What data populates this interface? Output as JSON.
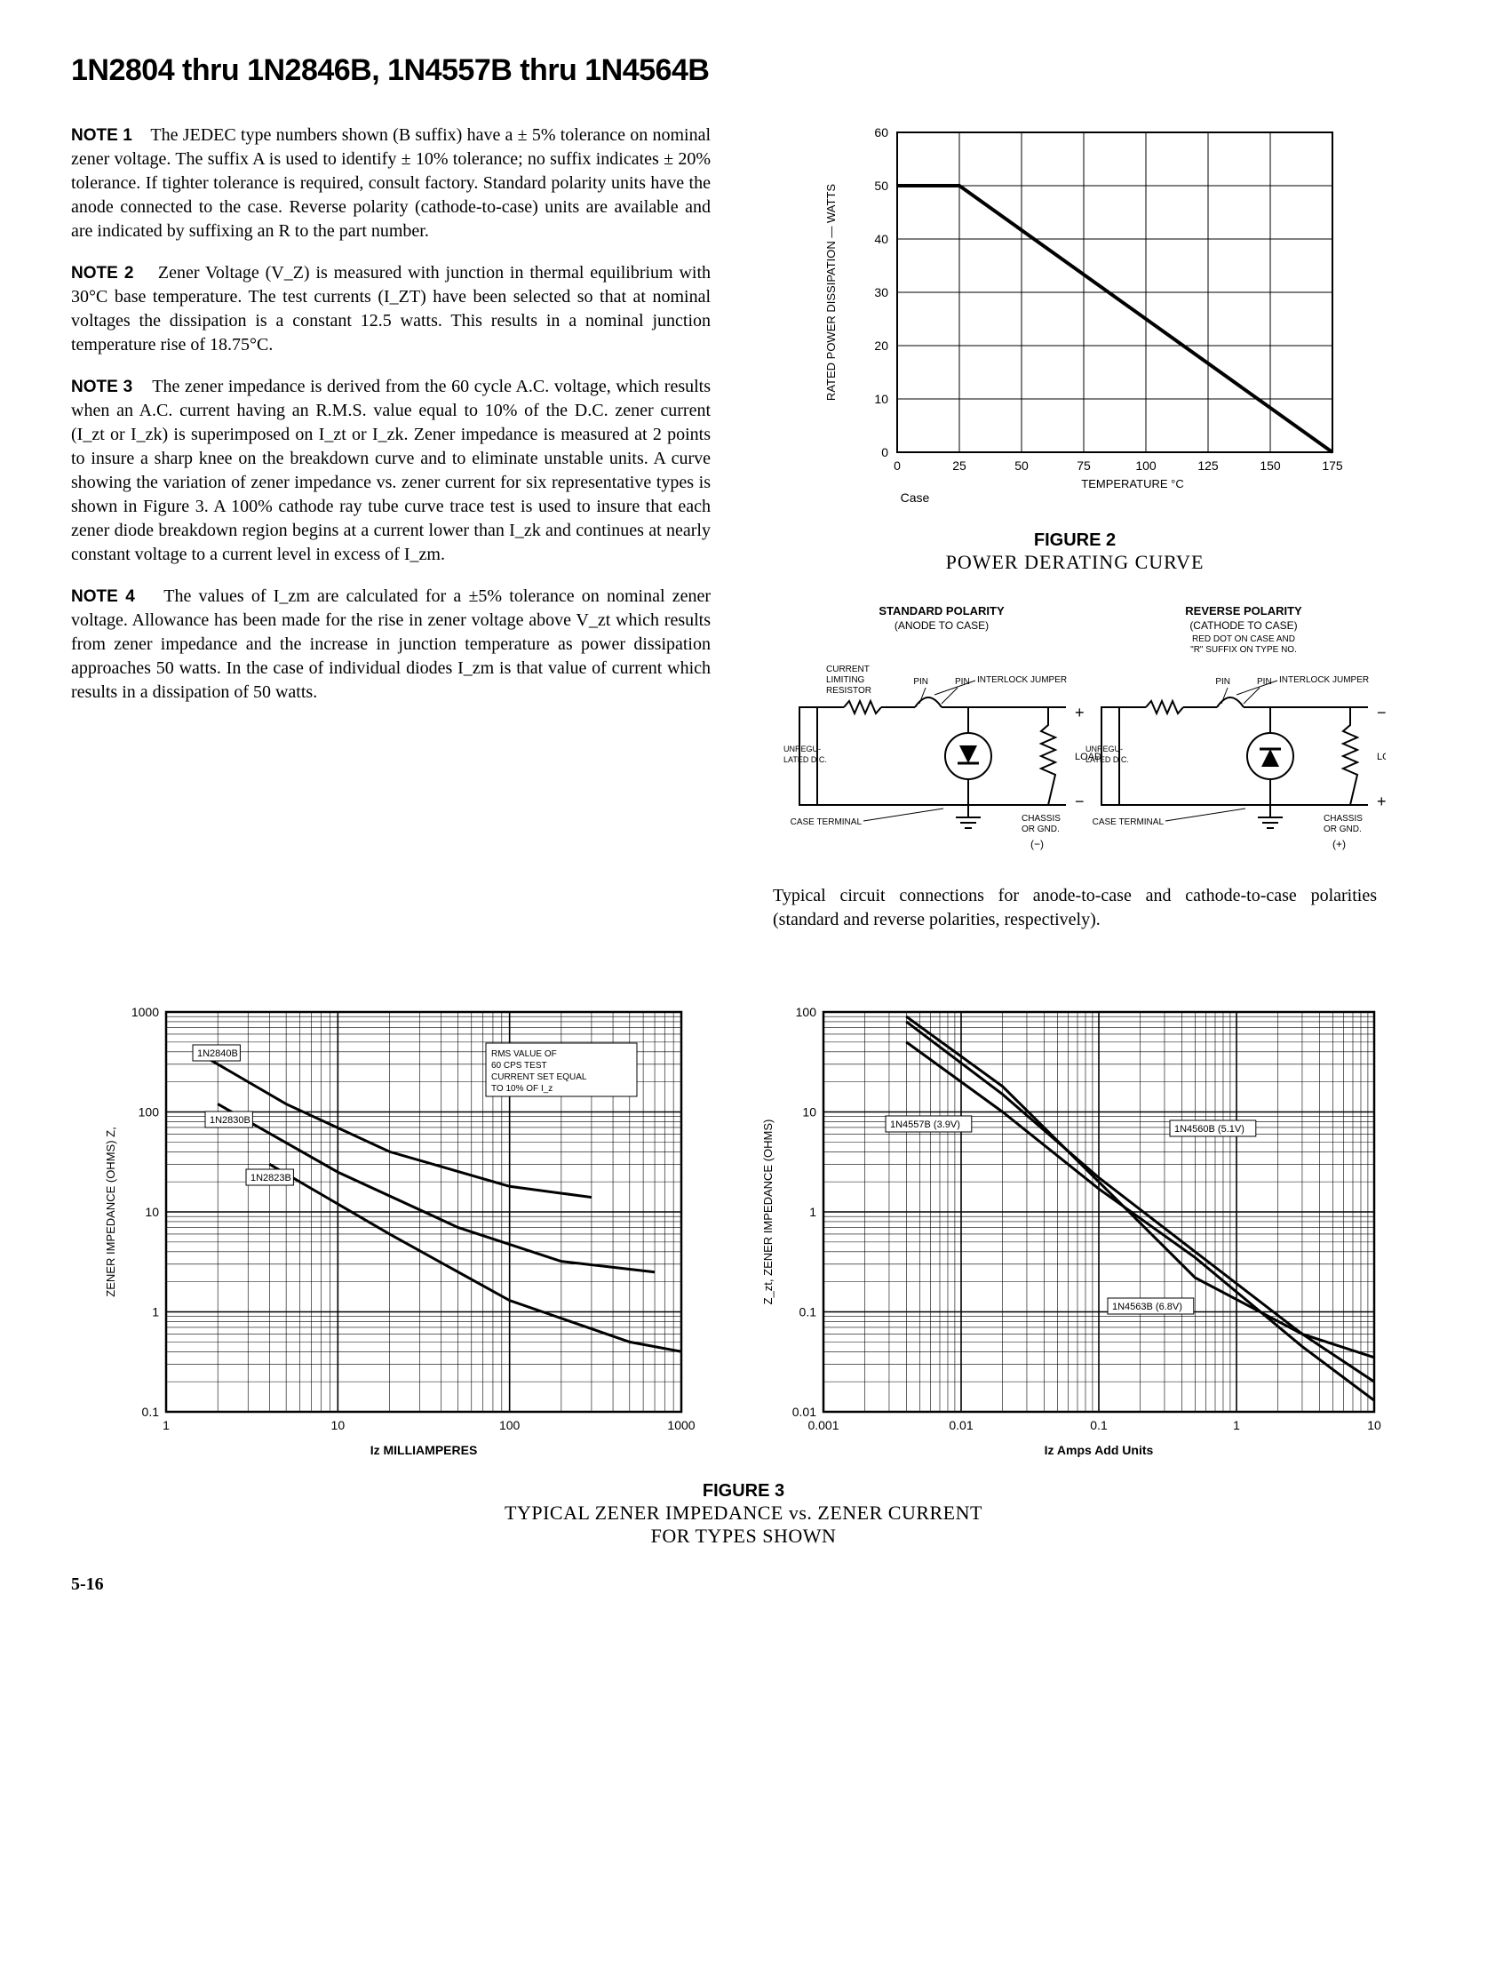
{
  "title": "1N2804 thru 1N2846B, 1N4557B thru 1N4564B",
  "notes": {
    "n1": {
      "label": "NOTE 1",
      "text": "The JEDEC type numbers shown (B suffix) have a ± 5% tolerance on nominal zener voltage. The suffix A is used to identify ± 10% tolerance; no suffix indicates ± 20% tolerance. If tighter tolerance is required, consult factory. Standard polarity units have the anode connected to the case. Reverse polarity (cathode-to-case) units are available and are indicated by suffixing an R to the part number."
    },
    "n2": {
      "label": "NOTE 2",
      "text": "Zener Voltage (V_Z) is measured with junction in thermal equilibrium with 30°C base temperature. The test currents (I_ZT) have been selected so that at nominal voltages the dissipation is a constant 12.5 watts. This results in a nominal junction temperature rise of 18.75°C."
    },
    "n3": {
      "label": "NOTE 3",
      "text": "The zener impedance is derived from the 60 cycle A.C. voltage, which results when an A.C. current having an R.M.S. value equal to 10% of the D.C. zener current (I_zt or I_zk) is superimposed on I_zt or I_zk. Zener impedance is measured at 2 points to insure a sharp knee on the breakdown curve and to eliminate unstable units. A curve showing the variation of zener impedance vs. zener current for six representative types is shown in Figure 3. A 100% cathode ray tube curve trace test is used to insure that each zener diode breakdown region begins at a current lower than I_zk and continues at nearly constant voltage to a current level in excess of I_zm."
    },
    "n4": {
      "label": "NOTE 4",
      "text": "The values of I_zm are calculated for a ±5% tolerance on nominal zener voltage. Allowance has been made for the rise in zener voltage above V_zt which results from zener impedance and the increase in junction temperature as power dissipation approaches 50 watts. In the case of individual diodes I_zm is that value of current which results in a dissipation of 50 watts."
    }
  },
  "figure2": {
    "label": "FIGURE 2",
    "caption": "POWER DERATING CURVE",
    "type": "line",
    "x_label": "TEMPERATURE °C",
    "x_extra": "Case",
    "y_label": "RATED POWER DISSIPATION — WATTS",
    "xlim": [
      0,
      175
    ],
    "ylim": [
      0,
      60
    ],
    "xticks": [
      0,
      25,
      50,
      75,
      100,
      125,
      150,
      175
    ],
    "yticks": [
      0,
      10,
      20,
      30,
      40,
      50,
      60
    ],
    "line_color": "#000000",
    "line_width": 4,
    "grid_color": "#000000",
    "background_color": "#ffffff",
    "data": [
      {
        "x": 0,
        "y": 50
      },
      {
        "x": 25,
        "y": 50
      },
      {
        "x": 175,
        "y": 0
      }
    ]
  },
  "circuit": {
    "std_title1": "STANDARD POLARITY",
    "std_title2": "(ANODE TO CASE)",
    "rev_title1": "REVERSE POLARITY",
    "rev_title2": "(CATHODE TO CASE)",
    "rev_title3": "RED DOT ON CASE AND \"R\" SUFFIX ON TYPE NO.",
    "l_resistor": "CURRENT LIMITING RESISTOR",
    "l_jumper": "INTERLOCK JUMPER",
    "l_pin": "PIN",
    "l_unreg": "UNREGULATED D.C.",
    "l_load": "LOAD",
    "l_case": "CASE TERMINAL",
    "l_chassis": "CHASSIS OR GND.",
    "l_minus": "(−)",
    "l_plus": "(+)",
    "caption": "Typical circuit connections for anode-to-case and cathode-to-case polarities (standard and reverse polarities, respectively)."
  },
  "figure3": {
    "label": "FIGURE 3",
    "caption1": "TYPICAL ZENER IMPEDANCE vs. ZENER CURRENT",
    "caption2": "FOR TYPES SHOWN",
    "left": {
      "type": "line-loglog",
      "x_label": "Iz MILLIAMPERES",
      "y_label": "ZENER IMPEDANCE (OHMS) Z,",
      "xlim": [
        1,
        1000
      ],
      "ylim": [
        0.1,
        1000
      ],
      "xticks": [
        1,
        10,
        100,
        1000
      ],
      "yticks": [
        0.1,
        1.0,
        10,
        100,
        1000
      ],
      "note": "RMS VALUE OF 60 CPS TEST CURRENT SET EQUAL TO 10% OF I_z",
      "series": [
        {
          "label": "1N2840B",
          "color": "#000000",
          "data": [
            {
              "x": 1.5,
              "y": 400
            },
            {
              "x": 5,
              "y": 120
            },
            {
              "x": 20,
              "y": 40
            },
            {
              "x": 100,
              "y": 18
            },
            {
              "x": 300,
              "y": 14
            }
          ]
        },
        {
          "label": "1N2830B",
          "color": "#000000",
          "data": [
            {
              "x": 2,
              "y": 120
            },
            {
              "x": 10,
              "y": 25
            },
            {
              "x": 50,
              "y": 7
            },
            {
              "x": 200,
              "y": 3.2
            },
            {
              "x": 700,
              "y": 2.5
            }
          ]
        },
        {
          "label": "1N2823B",
          "color": "#000000",
          "data": [
            {
              "x": 4,
              "y": 30
            },
            {
              "x": 20,
              "y": 6
            },
            {
              "x": 100,
              "y": 1.3
            },
            {
              "x": 500,
              "y": 0.5
            },
            {
              "x": 1000,
              "y": 0.4
            }
          ]
        }
      ],
      "line_width": 3
    },
    "right": {
      "type": "line-loglog",
      "x_label": "Iz Amps Add Units",
      "y_label": "Z_zt, ZENER IMPEDANCE (OHMS)",
      "xlim": [
        0.001,
        10
      ],
      "ylim": [
        0.01,
        100
      ],
      "xticks": [
        0.001,
        0.01,
        0.1,
        1,
        10
      ],
      "yticks": [
        0.01,
        0.1,
        1,
        10,
        100
      ],
      "series": [
        {
          "label": "1N4557B (3.9V)",
          "color": "#000000",
          "data": [
            {
              "x": 0.004,
              "y": 50
            },
            {
              "x": 0.02,
              "y": 10
            },
            {
              "x": 0.1,
              "y": 1.7
            },
            {
              "x": 0.5,
              "y": 0.35
            },
            {
              "x": 3,
              "y": 0.045
            },
            {
              "x": 10,
              "y": 0.013
            }
          ]
        },
        {
          "label": "1N4560B (5.1V)",
          "color": "#000000",
          "data": [
            {
              "x": 0.004,
              "y": 80
            },
            {
              "x": 0.02,
              "y": 15
            },
            {
              "x": 0.1,
              "y": 2.2
            },
            {
              "x": 0.5,
              "y": 0.4
            },
            {
              "x": 3,
              "y": 0.06
            },
            {
              "x": 10,
              "y": 0.02
            }
          ]
        },
        {
          "label": "1N4563B (6.8V)",
          "color": "#000000",
          "data": [
            {
              "x": 0.004,
              "y": 90
            },
            {
              "x": 0.02,
              "y": 18
            },
            {
              "x": 0.1,
              "y": 2
            },
            {
              "x": 0.5,
              "y": 0.22
            },
            {
              "x": 3,
              "y": 0.06
            },
            {
              "x": 10,
              "y": 0.035
            }
          ]
        }
      ],
      "line_width": 3
    }
  },
  "page_num": "5-16"
}
